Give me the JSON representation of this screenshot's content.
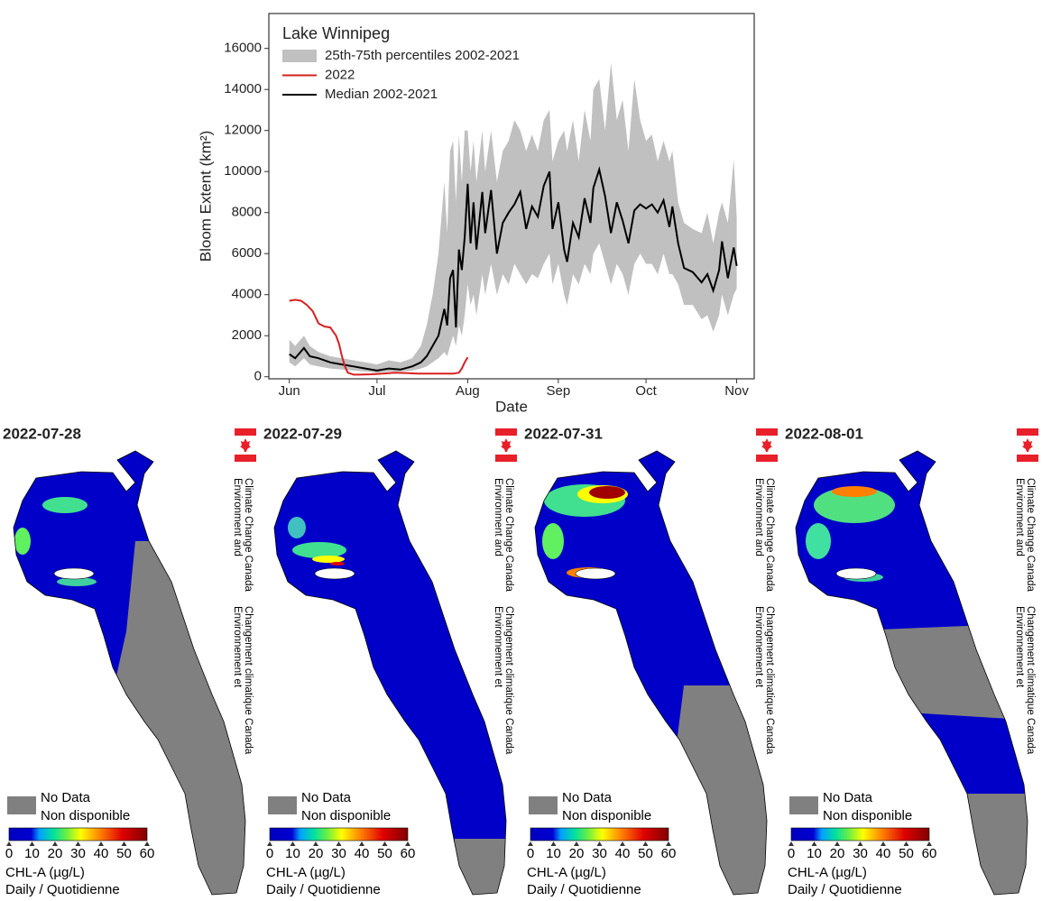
{
  "chart_data": {
    "type": "line",
    "legend_title": "Lake Winnipeg",
    "x_label": "Date",
    "y_label": "Bloom Extent (km²)",
    "xlim": [
      -7,
      159
    ],
    "xticks": [
      {
        "value": 0,
        "label": "Jun"
      },
      {
        "value": 30,
        "label": "Jul"
      },
      {
        "value": 61,
        "label": "Aug"
      },
      {
        "value": 92,
        "label": "Sep"
      },
      {
        "value": 122,
        "label": "Oct"
      },
      {
        "value": 153,
        "label": "Nov"
      }
    ],
    "ylim": [
      -100,
      17700
    ],
    "yticks": [
      0,
      2000,
      4000,
      6000,
      8000,
      10000,
      12000,
      14000,
      16000
    ],
    "legend": "upper left",
    "series": [
      {
        "name": "25th-75th percentiles 2002-2021",
        "kind": "band",
        "color": "#c0c0c0",
        "x": [
          0,
          2,
          5,
          7,
          10,
          14,
          18,
          22,
          26,
          30,
          34,
          38,
          42,
          45,
          47,
          49,
          51,
          53,
          54,
          55,
          56,
          57,
          58,
          59,
          60,
          61,
          62,
          63,
          64,
          66,
          67,
          69,
          71,
          73,
          75,
          77,
          79,
          81,
          83,
          85,
          87,
          89,
          90,
          92,
          94,
          95,
          97,
          99,
          101,
          103,
          104,
          106,
          108,
          110,
          112,
          114,
          116,
          118,
          120,
          122,
          124,
          126,
          128,
          130,
          131,
          133,
          135,
          138,
          141,
          143,
          145,
          147,
          148,
          150,
          152,
          153
        ],
        "lower": [
          700,
          500,
          900,
          600,
          500,
          400,
          350,
          300,
          250,
          200,
          250,
          250,
          300,
          400,
          500,
          700,
          900,
          1200,
          1000,
          1500,
          2000,
          1500,
          2500,
          2000,
          3000,
          4500,
          3500,
          4000,
          3000,
          5000,
          4000,
          5500,
          4000,
          5000,
          4500,
          5500,
          5000,
          4500,
          5000,
          4800,
          5500,
          6000,
          4500,
          5500,
          4000,
          3500,
          5000,
          4500,
          5500,
          5000,
          6000,
          6500,
          5500,
          4500,
          5500,
          5000,
          4000,
          5500,
          6000,
          5500,
          5500,
          5000,
          6000,
          5000,
          5000,
          4500,
          3500,
          3500,
          2800,
          3000,
          2200,
          3000,
          4000,
          3000,
          4000,
          4300
        ],
        "upper": [
          1800,
          1500,
          2000,
          1500,
          1200,
          1000,
          900,
          800,
          700,
          600,
          800,
          700,
          900,
          1500,
          2500,
          4000,
          6000,
          9500,
          7000,
          11000,
          11500,
          8500,
          11800,
          9500,
          12000,
          12000,
          10000,
          11500,
          9500,
          12000,
          10000,
          12000,
          9500,
          11000,
          11500,
          12500,
          12000,
          11000,
          11800,
          11000,
          12500,
          13000,
          10500,
          11500,
          12000,
          11000,
          12500,
          10500,
          13000,
          11500,
          14000,
          14500,
          12000,
          15300,
          12500,
          13500,
          11000,
          14500,
          12500,
          11500,
          11800,
          10500,
          11500,
          10500,
          11000,
          8500,
          7500,
          7200,
          7000,
          8000,
          6500,
          8000,
          8500,
          7500,
          10600,
          7800
        ]
      },
      {
        "name": "2022",
        "kind": "line",
        "color": "#d62020",
        "x": [
          0,
          2,
          4,
          6,
          8,
          10,
          12,
          14,
          16,
          17,
          18,
          19,
          20,
          22,
          24,
          28,
          32,
          36,
          40,
          44,
          48,
          52,
          56,
          58,
          59,
          60,
          61
        ],
        "values": [
          3700,
          3750,
          3700,
          3500,
          3200,
          2600,
          2450,
          2400,
          2000,
          1600,
          1000,
          500,
          200,
          100,
          100,
          120,
          150,
          200,
          180,
          150,
          150,
          150,
          150,
          200,
          400,
          700,
          950
        ]
      },
      {
        "name": "Median 2002-2021",
        "kind": "line",
        "color": "#000000",
        "x": [
          0,
          2,
          5,
          7,
          10,
          14,
          18,
          22,
          26,
          30,
          34,
          38,
          42,
          45,
          47,
          49,
          51,
          53,
          54,
          55,
          56,
          57,
          58,
          59,
          60,
          61,
          62,
          63,
          64,
          66,
          67,
          69,
          71,
          73,
          75,
          77,
          79,
          81,
          83,
          85,
          87,
          89,
          90,
          92,
          94,
          95,
          97,
          99,
          101,
          103,
          104,
          106,
          108,
          110,
          112,
          114,
          116,
          118,
          120,
          122,
          124,
          126,
          128,
          130,
          131,
          133,
          135,
          138,
          141,
          143,
          145,
          147,
          148,
          150,
          152,
          153
        ],
        "values": [
          1100,
          900,
          1400,
          1000,
          900,
          700,
          600,
          500,
          400,
          300,
          400,
          350,
          500,
          700,
          1000,
          1500,
          2000,
          3300,
          2500,
          4800,
          5200,
          2400,
          6200,
          5200,
          6800,
          9400,
          6500,
          8500,
          6200,
          9000,
          7000,
          9100,
          6000,
          7500,
          8000,
          8400,
          9000,
          7200,
          8300,
          7800,
          9300,
          10000,
          7200,
          8500,
          6200,
          5600,
          7500,
          6800,
          8700,
          7500,
          9200,
          10100,
          8800,
          7000,
          8500,
          7600,
          6500,
          8100,
          8400,
          8200,
          8400,
          8000,
          8600,
          7300,
          8300,
          6500,
          5300,
          5100,
          4600,
          5000,
          4200,
          5200,
          6600,
          4800,
          6300,
          5400
        ]
      }
    ]
  },
  "maps": {
    "panels": [
      {
        "date": "2022-07-28"
      },
      {
        "date": "2022-07-29"
      },
      {
        "date": "2022-07-31"
      },
      {
        "date": "2022-08-01"
      }
    ],
    "agency_en": [
      "Environment and",
      "Climate Change Canada"
    ],
    "agency_fr": [
      "Environnement et",
      "Changement climatique Canada"
    ],
    "no_data": [
      "No Data",
      "Non disponible"
    ],
    "colorbar_ticks": [
      0,
      10,
      20,
      30,
      40,
      50,
      60
    ],
    "colorbar_label": "CHL-A (µg/L)",
    "period": "Daily / Quotidienne"
  }
}
